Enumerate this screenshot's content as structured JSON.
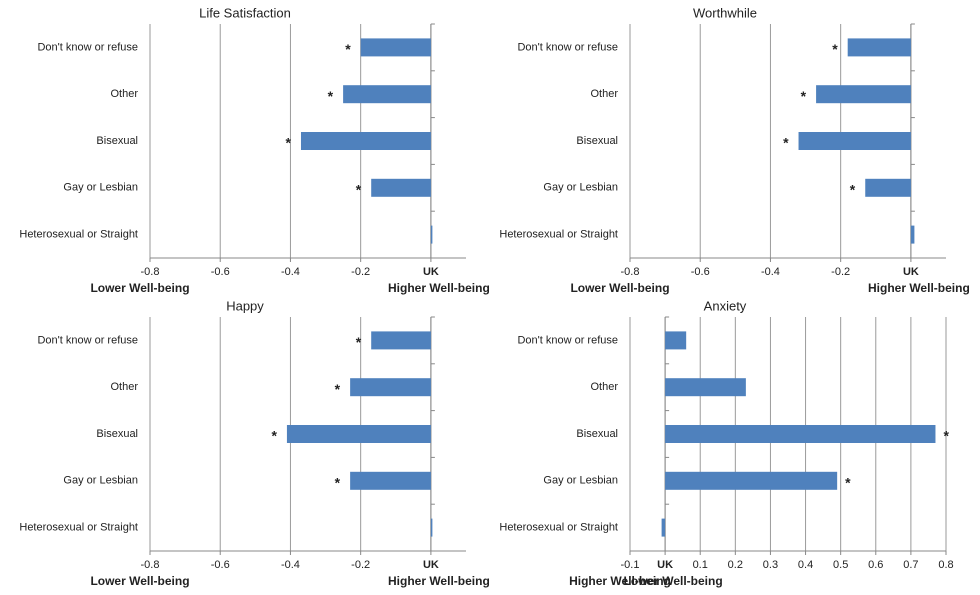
{
  "chart_data": [
    {
      "type": "barh",
      "title": "Life Satisfaction",
      "categories": [
        "Don't know or refuse",
        "Other",
        "Bisexual",
        "Gay or Lesbian",
        "Heterosexual or Straight"
      ],
      "values": [
        -0.2,
        -0.25,
        -0.37,
        -0.17,
        0
      ],
      "significance_labels": [
        "*",
        "*",
        "*",
        "*",
        null
      ],
      "color": "#4f81bd",
      "xlim": [
        -0.8,
        0.1
      ],
      "xticks": [
        -0.8,
        -0.6,
        -0.4,
        -0.2,
        {
          "value": 0,
          "label": "UK"
        }
      ],
      "grid": true,
      "x_label_left": "Lower Well-being",
      "x_label_right": "Higher Well-being"
    },
    {
      "type": "barh",
      "title": "Worthwhile",
      "categories": [
        "Don't know or refuse",
        "Other",
        "Bisexual",
        "Gay or Lesbian",
        "Heterosexual or Straight"
      ],
      "values": [
        -0.18,
        -0.27,
        -0.32,
        -0.13,
        0.01
      ],
      "significance_labels": [
        "*",
        "*",
        "*",
        "*",
        null
      ],
      "color": "#4f81bd",
      "xlim": [
        -0.8,
        0.1
      ],
      "xticks": [
        -0.8,
        -0.6,
        -0.4,
        -0.2,
        {
          "value": 0,
          "label": "UK"
        }
      ],
      "grid": true,
      "x_label_left": "Lower Well-being",
      "x_label_right": "Higher Well-being"
    },
    {
      "type": "barh",
      "title": "Happy",
      "categories": [
        "Don't know or refuse",
        "Other",
        "Bisexual",
        "Gay or Lesbian",
        "Heterosexual or Straight"
      ],
      "values": [
        -0.17,
        -0.23,
        -0.41,
        -0.23,
        0
      ],
      "significance_labels": [
        "*",
        "*",
        "*",
        "*",
        null
      ],
      "color": "#4f81bd",
      "xlim": [
        -0.8,
        0.1
      ],
      "xticks": [
        -0.8,
        -0.6,
        -0.4,
        -0.2,
        {
          "value": 0,
          "label": "UK"
        }
      ],
      "grid": true,
      "x_label_left": "Lower Well-being",
      "x_label_right": "Higher Well-being"
    },
    {
      "type": "barh",
      "title": "Anxiety",
      "categories": [
        "Don't know or refuse",
        "Other",
        "Bisexual",
        "Gay or Lesbian",
        "Heterosexual or Straight"
      ],
      "values": [
        0.06,
        0.23,
        0.77,
        0.49,
        -0.01
      ],
      "significance_labels": [
        null,
        null,
        "*",
        "*",
        null
      ],
      "color": "#4f81bd",
      "xlim": [
        -0.1,
        0.8
      ],
      "xticks": [
        -0.1,
        {
          "value": 0,
          "label": "UK"
        },
        0.1,
        0.2,
        0.3,
        0.4,
        0.5,
        0.6,
        0.7,
        0.8
      ],
      "grid": true,
      "x_label_left": "Higher Well-being",
      "x_label_right": "Lower Well-being"
    }
  ]
}
